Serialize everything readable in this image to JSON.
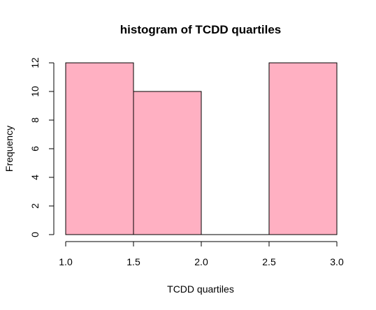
{
  "chart_data": {
    "type": "bar",
    "title": "histogram of TCDD quartiles",
    "xlabel": "TCDD quartiles",
    "ylabel": "Frequency",
    "bins": [
      {
        "from": 1.0,
        "to": 1.5,
        "count": 12
      },
      {
        "from": 1.5,
        "to": 2.0,
        "count": 10
      },
      {
        "from": 2.0,
        "to": 2.5,
        "count": 0
      },
      {
        "from": 2.5,
        "to": 3.0,
        "count": 12
      }
    ],
    "xlim": [
      1.0,
      3.0
    ],
    "ylim": [
      0,
      12
    ],
    "xticks": [
      "1.0",
      "1.5",
      "2.0",
      "2.5",
      "3.0"
    ],
    "yticks": [
      "0",
      "2",
      "4",
      "6",
      "8",
      "10",
      "12"
    ],
    "bar_color": "#ffb0c2",
    "grid": false,
    "legend": "none"
  }
}
